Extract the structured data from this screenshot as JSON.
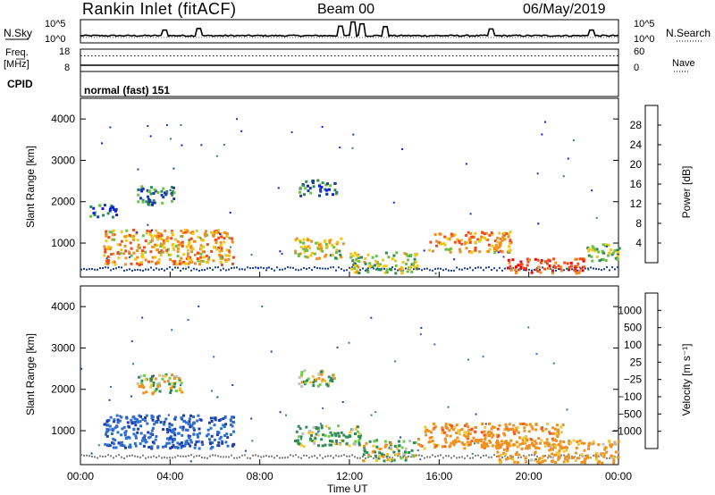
{
  "header": {
    "station": "Rankin Inlet (fitACF)",
    "beam": "Beam 00",
    "date": "06/May/2019"
  },
  "cpid_label": "CPID",
  "cpid_text": "normal (fast) 151",
  "colors": {
    "panel_bg": "#ffffff",
    "trace": "#000000",
    "ground_scatter": "#808080"
  },
  "chart_data": [
    {
      "type": "line",
      "panel": "nsky",
      "left_label": "N.Sky",
      "right_label": "N.Search",
      "left_ticks": [
        "10^5",
        "10^0"
      ],
      "right_ticks": [
        "10^5",
        "10^0"
      ],
      "baseline_level": 0.31,
      "spikes": [
        {
          "x": 3.8,
          "level": 0.55
        },
        {
          "x": 5.3,
          "level": 0.62
        },
        {
          "x": 11.6,
          "level": 0.72
        },
        {
          "x": 12.2,
          "level": 0.9
        },
        {
          "x": 12.6,
          "level": 0.82
        },
        {
          "x": 13.6,
          "level": 0.7
        },
        {
          "x": 18.3,
          "level": 0.6
        },
        {
          "x": 22.8,
          "level": 0.55
        }
      ]
    },
    {
      "type": "line",
      "panel": "freq",
      "left_label": "Freq.",
      "left_unit": "[MHz]",
      "right_label": "Nave",
      "left_ticks": [
        "18",
        "8"
      ],
      "right_ticks": [
        "60",
        "0"
      ],
      "freq_level": 0.28,
      "nave_level": 0.7
    },
    {
      "type": "heatmap",
      "panel": "power",
      "ylabel": "Slant Range [km]",
      "yticks": [
        "1000",
        "2000",
        "3000",
        "4000"
      ],
      "ylim": [
        180,
        4500
      ],
      "xlim": [
        0,
        24
      ],
      "colorbar_label": "Power [dB]",
      "colorbar_ticks": [
        "4",
        "8",
        "12",
        "16",
        "20",
        "24",
        "28"
      ],
      "colorbar_colors": [
        "#1212ff",
        "#1a3fa0",
        "#2e8b57",
        "#6cbf48",
        "#f2c616",
        "#f28c1c",
        "#f24a1a",
        "#e80a0a"
      ],
      "echo_regions": [
        {
          "t": [
            1.0,
            6.8
          ],
          "r": [
            500,
            1350
          ],
          "dB": 21
        },
        {
          "t": [
            2.5,
            4.2
          ],
          "r": [
            1950,
            2400
          ],
          "dB": 9
        },
        {
          "t": [
            0.4,
            1.6
          ],
          "r": [
            1650,
            1950
          ],
          "dB": 8
        },
        {
          "t": [
            9.7,
            11.4
          ],
          "r": [
            2150,
            2550
          ],
          "dB": 8
        },
        {
          "t": [
            9.5,
            11.7
          ],
          "r": [
            650,
            1150
          ],
          "dB": 17
        },
        {
          "t": [
            12.0,
            15.0
          ],
          "r": [
            300,
            800
          ],
          "dB": 15
        },
        {
          "t": [
            15.5,
            19.2
          ],
          "r": [
            800,
            1300
          ],
          "dB": 21
        },
        {
          "t": [
            19.0,
            22.5
          ],
          "r": [
            300,
            650
          ],
          "dB": 26
        },
        {
          "t": [
            22.5,
            24.0
          ],
          "r": [
            600,
            1000
          ],
          "dB": 13
        }
      ]
    },
    {
      "type": "heatmap",
      "panel": "velocity",
      "ylabel": "Slant Range [km]",
      "yticks": [
        "1000",
        "2000",
        "3000",
        "4000"
      ],
      "ylim": [
        180,
        4500
      ],
      "xlim": [
        0,
        24
      ],
      "xticks": [
        "00:00",
        "04:00",
        "08:00",
        "12:00",
        "16:00",
        "20:00",
        "00:00"
      ],
      "xlabel": "Time UT",
      "colorbar_label": "Velocity [m s⁻¹]",
      "colorbar_ticks": [
        "1000",
        "500",
        "100",
        "25",
        "−25",
        "−100",
        "−500",
        "−1000"
      ],
      "colorbar_colors": [
        "#1f3ea6",
        "#2d6fd0",
        "#2e8b57",
        "#6fce46",
        "#c0c0c0",
        "#f2c83a",
        "#f0901e",
        "#f05a1c",
        "#e80a0a"
      ],
      "echo_regions": [
        {
          "t": [
            1.0,
            6.8
          ],
          "r": [
            600,
            1400
          ],
          "v": 900
        },
        {
          "t": [
            2.5,
            4.5
          ],
          "r": [
            1900,
            2400
          ],
          "v": 0
        },
        {
          "t": [
            9.7,
            11.4
          ],
          "r": [
            2100,
            2500
          ],
          "v": 0
        },
        {
          "t": [
            9.5,
            12.5
          ],
          "r": [
            650,
            1150
          ],
          "v": 150
        },
        {
          "t": [
            12.5,
            15.0
          ],
          "r": [
            300,
            800
          ],
          "v": 80
        },
        {
          "t": [
            15.0,
            21.5
          ],
          "r": [
            600,
            1200
          ],
          "v": -300
        },
        {
          "t": [
            18.5,
            24.0
          ],
          "r": [
            250,
            800
          ],
          "v": -250
        }
      ]
    }
  ]
}
